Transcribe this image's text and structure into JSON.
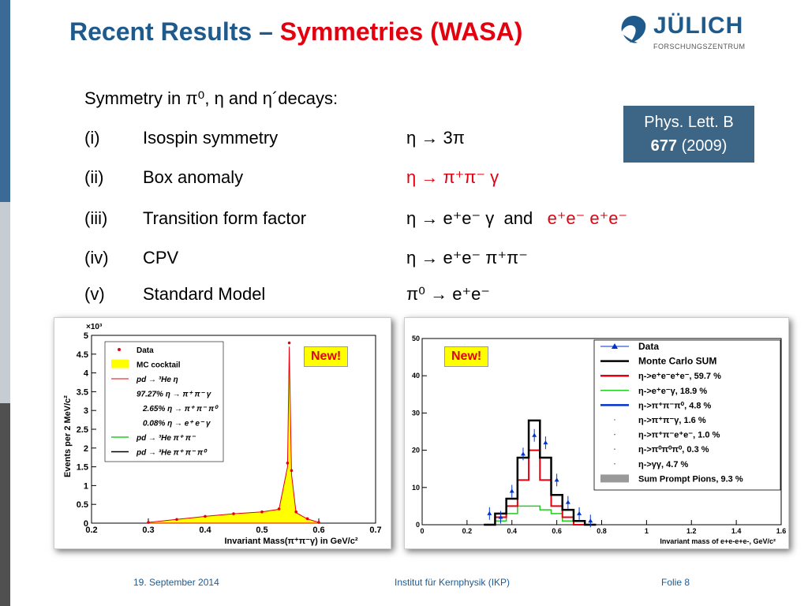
{
  "slide": {
    "title_prefix": "Recent Results – ",
    "title_highlight": "Symmetries (WASA)",
    "logo_word": "JÜLICH",
    "logo_sub": "FORSCHUNGSZENTRUM",
    "intro": "Symmetry in π⁰, η and η´decays:",
    "reference_line1": "Phys. Lett. B",
    "reference_volume": "677",
    "reference_year": "(2009)",
    "rows": [
      {
        "num": "(i)",
        "name": "Isospin symmetry",
        "proc": "η → 3π"
      },
      {
        "num": "(ii)",
        "name": "Box anomaly",
        "proc": "η → π⁺π⁻ γ"
      },
      {
        "num": "(iii)",
        "name": "Transition form factor",
        "proc_a": "η → e⁺e⁻ γ",
        "proc_and": "and",
        "proc_b": "e⁺e⁻ e⁺e⁻"
      },
      {
        "num": "(iv)",
        "name": "CPV",
        "proc": "η → e⁺e⁻ π⁺π⁻"
      },
      {
        "num": "(v)",
        "name": "Standard Model",
        "proc": "π⁰ → e⁺e⁻"
      }
    ],
    "new_label": "New!",
    "footer_date": "19. September 2014",
    "footer_institute": "Institut für Kernphysik (IKP)",
    "footer_page": "Folie 8"
  },
  "colors": {
    "title_blue": "#1f5a8c",
    "accent_red": "#e3000f",
    "ref_box": "#3d6585"
  },
  "chart_data": [
    {
      "type": "line",
      "xlabel": "Invariant Mass(π⁺π⁻γ)   in GeV/c²",
      "ylabel": "Events per 2 MeV/c²",
      "y_multiplier": "×10³",
      "xlim": [
        0.2,
        0.7
      ],
      "ylim": [
        0,
        5
      ],
      "xticks": [
        "0.2",
        "0.3",
        "0.4",
        "0.5",
        "0.6",
        "0.7"
      ],
      "yticks": [
        "0",
        "0.5",
        "1",
        "1.5",
        "2",
        "2.5",
        "3",
        "3.5",
        "4",
        "4.5",
        "5"
      ],
      "legend": [
        "Data",
        "MC cocktail",
        "pd → ³He η",
        "97.27% η → π⁺ π⁻ γ",
        "2.65% η → π⁺ π⁻ π⁰",
        "0.08% η → e⁺ e⁻ γ",
        "pd → ³He π⁺ π⁻",
        "pd → ³He π⁺ π⁻ π⁰"
      ],
      "legend_placement": "top-left",
      "x": [
        0.3,
        0.35,
        0.4,
        0.45,
        0.5,
        0.53,
        0.545,
        0.548,
        0.552,
        0.56,
        0.58,
        0.6
      ],
      "series": [
        {
          "name": "Data",
          "values": [
            0.02,
            0.1,
            0.18,
            0.25,
            0.3,
            0.38,
            1.6,
            4.8,
            1.4,
            0.3,
            0.12,
            0.02
          ]
        },
        {
          "name": "MC cocktail",
          "values": [
            0.02,
            0.1,
            0.18,
            0.25,
            0.3,
            0.37,
            1.5,
            4.7,
            1.3,
            0.28,
            0.11,
            0.02
          ]
        }
      ]
    },
    {
      "type": "bar",
      "xlabel": "Invariant mass of e+e-e+e-, GeV/c²",
      "xlim": [
        0,
        1.6
      ],
      "ylim": [
        0,
        50
      ],
      "xticks": [
        "0",
        "0.2",
        "0.4",
        "0.6",
        "0.8",
        "1",
        "1.2",
        "1.4",
        "1.6"
      ],
      "yticks": [
        "0",
        "10",
        "20",
        "30",
        "40",
        "50"
      ],
      "legend": [
        "Data",
        "Monte Carlo SUM",
        "η->e⁺e⁻e⁺e⁻, 59.7 %",
        "η->e⁺e⁻γ, 18.9 %",
        "η->π⁺π⁻π⁰, 4.8 %",
        "η->π⁺π⁻γ, 1.6 %",
        "η->π⁺π⁻e⁺e⁻, 1.0 %",
        "η->π⁰π⁰π⁰, 0.3 %",
        "η->γγ, 4.7 %",
        "Sum Prompt Pions, 9.3 %"
      ],
      "legend_placement": "top-right",
      "x": [
        0.3,
        0.35,
        0.4,
        0.45,
        0.5,
        0.55,
        0.6,
        0.65,
        0.7,
        0.75
      ],
      "series": [
        {
          "name": "Data",
          "values": [
            3,
            2,
            9,
            19,
            24,
            22,
            12,
            6,
            3,
            1
          ]
        },
        {
          "name": "Monte Carlo SUM",
          "values": [
            0,
            3,
            7,
            18,
            28,
            18,
            8,
            4,
            1,
            0
          ]
        },
        {
          "name": "η->e⁺e⁻e⁺e⁻, 59.7 %",
          "values": [
            0,
            2,
            5,
            12,
            20,
            12,
            5,
            2,
            0,
            0
          ]
        },
        {
          "name": "η->e⁺e⁻γ, 18.9 %",
          "values": [
            0,
            1,
            3,
            5,
            5,
            4,
            3,
            1,
            0,
            0
          ]
        }
      ]
    }
  ]
}
